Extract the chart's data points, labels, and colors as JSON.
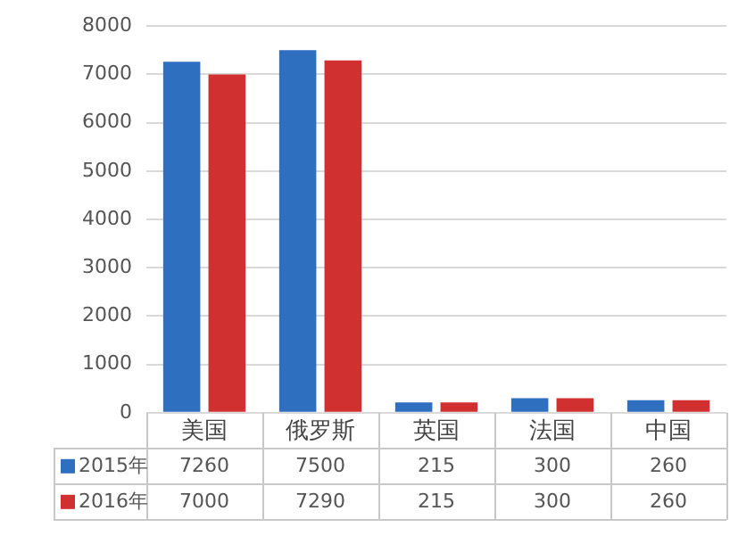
{
  "chart_data": {
    "type": "bar",
    "categories": [
      "美国",
      "俄罗斯",
      "英国",
      "法国",
      "中国"
    ],
    "series": [
      {
        "name": "2015年",
        "color": "#2e6fc0",
        "values": [
          7260,
          7500,
          215,
          300,
          260
        ]
      },
      {
        "name": "2016年",
        "color": "#d13030",
        "values": [
          7000,
          7290,
          215,
          300,
          260
        ]
      }
    ],
    "ylim": [
      0,
      8000
    ],
    "yticks": [
      0,
      1000,
      2000,
      3000,
      4000,
      5000,
      6000,
      7000,
      8000
    ],
    "grid": "y",
    "legend": "bottom",
    "data_labels": true
  }
}
